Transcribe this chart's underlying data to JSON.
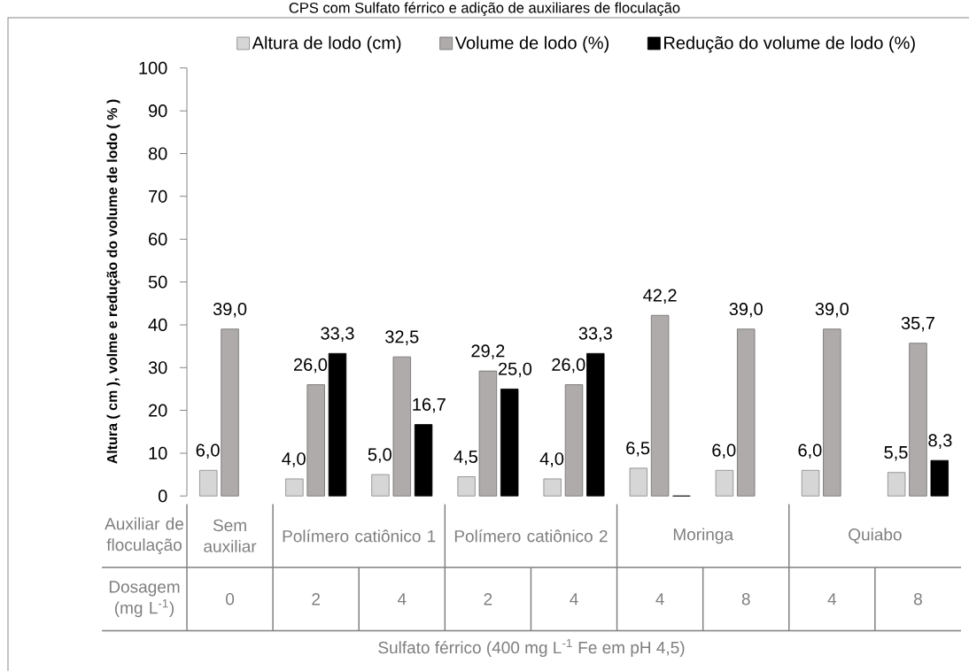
{
  "chart_data": {
    "type": "bar",
    "title": "CPS com Sulfato férrico e adição de auxiliares de floculação",
    "ylabel": "Altura ( cm ), volme e redução do volume de lodo ( % )",
    "xlabel": "Sulfato férrico (400 mg L$^{-1}$ Fe em pH 4,5)",
    "categories": [
      "0",
      "2",
      "4",
      "2",
      "4",
      "4",
      "8",
      "4",
      "8"
    ],
    "series": [
      {
        "name": "Altura de lodo (cm)",
        "color": "#d6d6d6",
        "values": [
          6.0,
          4.0,
          5.0,
          4.5,
          4.0,
          6.5,
          6.0,
          6.0,
          5.5
        ],
        "value_labels": [
          "6,0",
          "4,0",
          "5,0",
          "4,5",
          "4,0",
          "6,5",
          "6,0",
          "6,0",
          "5,5"
        ]
      },
      {
        "name": "Volume de lodo (%)",
        "color": "#afabab",
        "values": [
          39.0,
          26.0,
          32.5,
          29.2,
          26.0,
          42.2,
          39.0,
          39.0,
          35.7
        ],
        "value_labels": [
          "39,0",
          "26,0",
          "32,5",
          "29,2",
          "26,0",
          "42,2",
          "39,0",
          "39,0",
          "35,7"
        ]
      },
      {
        "name": "Redução do volume de lodo (%)",
        "color": "#000000",
        "values": [
          null,
          33.3,
          16.7,
          25.0,
          33.3,
          0,
          null,
          null,
          8.3
        ],
        "value_labels": [
          null,
          "33,3",
          "16,7",
          "25,0",
          "33,3",
          null,
          null,
          null,
          "8,3"
        ]
      }
    ],
    "ylim": [
      0,
      100
    ],
    "yticks": [
      0,
      10,
      20,
      30,
      40,
      50,
      60,
      70,
      80,
      90,
      100
    ],
    "legend": "top",
    "annotations": [
      "Auxiliar de floculação",
      "Dosagem (mg L$^{-1}$)",
      "Sem auxiliar",
      "Polímero catiônico 1",
      "Polímero catiônico 2",
      "Moringa",
      "Quiabo"
    ]
  }
}
